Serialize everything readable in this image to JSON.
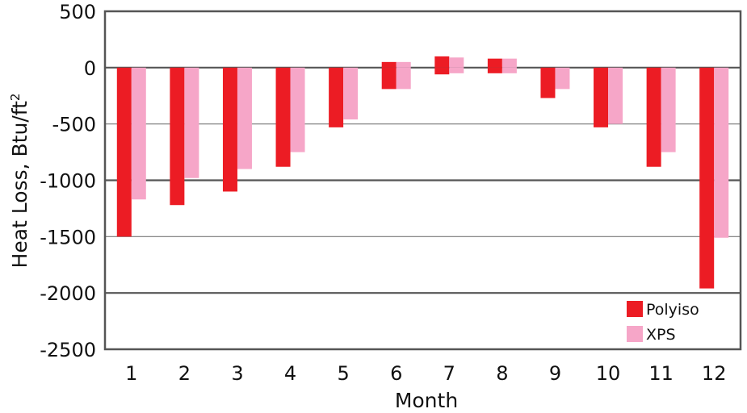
{
  "chart_data": {
    "type": "bar",
    "title": "",
    "xlabel": "Month",
    "ylabel_main": "Heat Loss, Btu/ft",
    "ylabel_sup": "2",
    "categories": [
      "1",
      "2",
      "3",
      "4",
      "5",
      "6",
      "7",
      "8",
      "9",
      "10",
      "11",
      "12"
    ],
    "ylim": [
      -2500,
      500
    ],
    "yticks": [
      "500",
      "0",
      "-500",
      "-1000",
      "-1500",
      "-2000",
      "-2500"
    ],
    "grid": true,
    "legend_position": "bottom-right",
    "series": [
      {
        "name": "Polyiso",
        "color": "#ec1c24",
        "gain": [
          0,
          0,
          0,
          0,
          0,
          50,
          100,
          80,
          0,
          0,
          0,
          0
        ],
        "loss": [
          -1500,
          -1220,
          -1100,
          -880,
          -530,
          -190,
          -60,
          -50,
          -270,
          -530,
          -880,
          -1960
        ]
      },
      {
        "name": "XPS",
        "color": "#f6a6c8",
        "gain": [
          0,
          0,
          0,
          0,
          0,
          50,
          90,
          80,
          0,
          0,
          0,
          0
        ],
        "loss": [
          -1170,
          -980,
          -900,
          -750,
          -460,
          -190,
          -50,
          -50,
          -190,
          -500,
          -750,
          -1510
        ]
      }
    ]
  }
}
